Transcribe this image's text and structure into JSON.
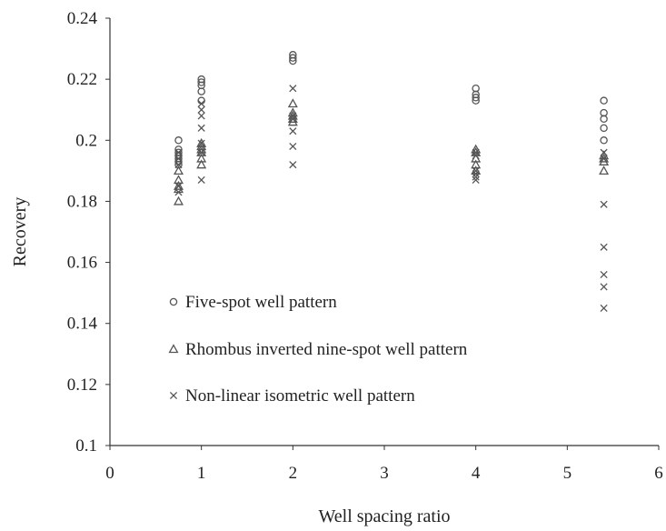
{
  "chart_data": {
    "type": "scatter",
    "title": "",
    "xlabel": "Well spacing ratio",
    "ylabel": "Recovery",
    "xlim": [
      0,
      6
    ],
    "ylim": [
      0.1,
      0.24
    ],
    "x_ticks": [
      "0",
      "1",
      "2",
      "3",
      "4",
      "5",
      "6"
    ],
    "y_ticks": [
      "0.1",
      "0.12",
      "0.14",
      "0.16",
      "0.18",
      "0.2",
      "0.22",
      "0.24"
    ],
    "grid": false,
    "legend_position": "left-center inside plot",
    "series": [
      {
        "name": "Five-spot well pattern",
        "marker": "circle",
        "points": [
          [
            0.75,
            0.2
          ],
          [
            0.75,
            0.197
          ],
          [
            0.75,
            0.196
          ],
          [
            0.75,
            0.195
          ],
          [
            0.75,
            0.194
          ],
          [
            0.75,
            0.193
          ],
          [
            0.75,
            0.192
          ],
          [
            1.0,
            0.22
          ],
          [
            1.0,
            0.219
          ],
          [
            1.0,
            0.218
          ],
          [
            1.0,
            0.216
          ],
          [
            1.0,
            0.213
          ],
          [
            2.0,
            0.228
          ],
          [
            2.0,
            0.227
          ],
          [
            2.0,
            0.226
          ],
          [
            4.0,
            0.217
          ],
          [
            4.0,
            0.215
          ],
          [
            4.0,
            0.214
          ],
          [
            4.0,
            0.213
          ],
          [
            5.4,
            0.213
          ],
          [
            5.4,
            0.209
          ],
          [
            5.4,
            0.207
          ],
          [
            5.4,
            0.204
          ],
          [
            5.4,
            0.2
          ]
        ]
      },
      {
        "name": "Rhombus inverted nine-spot well pattern",
        "marker": "triangle",
        "points": [
          [
            0.75,
            0.19
          ],
          [
            0.75,
            0.187
          ],
          [
            0.75,
            0.185
          ],
          [
            0.75,
            0.184
          ],
          [
            0.75,
            0.18
          ],
          [
            1.0,
            0.199
          ],
          [
            1.0,
            0.198
          ],
          [
            1.0,
            0.197
          ],
          [
            1.0,
            0.196
          ],
          [
            1.0,
            0.194
          ],
          [
            1.0,
            0.192
          ],
          [
            2.0,
            0.212
          ],
          [
            2.0,
            0.209
          ],
          [
            2.0,
            0.208
          ],
          [
            2.0,
            0.207
          ],
          [
            2.0,
            0.206
          ],
          [
            4.0,
            0.197
          ],
          [
            4.0,
            0.196
          ],
          [
            4.0,
            0.194
          ],
          [
            4.0,
            0.192
          ],
          [
            4.0,
            0.19
          ],
          [
            5.4,
            0.195
          ],
          [
            5.4,
            0.194
          ],
          [
            5.4,
            0.193
          ],
          [
            5.4,
            0.19
          ]
        ]
      },
      {
        "name": "Non-linear isometric well pattern",
        "marker": "x",
        "points": [
          [
            0.75,
            0.196
          ],
          [
            0.75,
            0.194
          ],
          [
            0.75,
            0.192
          ],
          [
            0.75,
            0.185
          ],
          [
            0.75,
            0.183
          ],
          [
            1.0,
            0.212
          ],
          [
            1.0,
            0.21
          ],
          [
            1.0,
            0.208
          ],
          [
            1.0,
            0.204
          ],
          [
            1.0,
            0.199
          ],
          [
            1.0,
            0.196
          ],
          [
            1.0,
            0.187
          ],
          [
            2.0,
            0.217
          ],
          [
            2.0,
            0.208
          ],
          [
            2.0,
            0.207
          ],
          [
            2.0,
            0.203
          ],
          [
            2.0,
            0.198
          ],
          [
            2.0,
            0.192
          ],
          [
            4.0,
            0.196
          ],
          [
            4.0,
            0.195
          ],
          [
            4.0,
            0.19
          ],
          [
            4.0,
            0.189
          ],
          [
            4.0,
            0.188
          ],
          [
            4.0,
            0.187
          ],
          [
            5.4,
            0.196
          ],
          [
            5.4,
            0.194
          ],
          [
            5.4,
            0.179
          ],
          [
            5.4,
            0.165
          ],
          [
            5.4,
            0.156
          ],
          [
            5.4,
            0.152
          ],
          [
            5.4,
            0.145
          ]
        ]
      }
    ]
  }
}
